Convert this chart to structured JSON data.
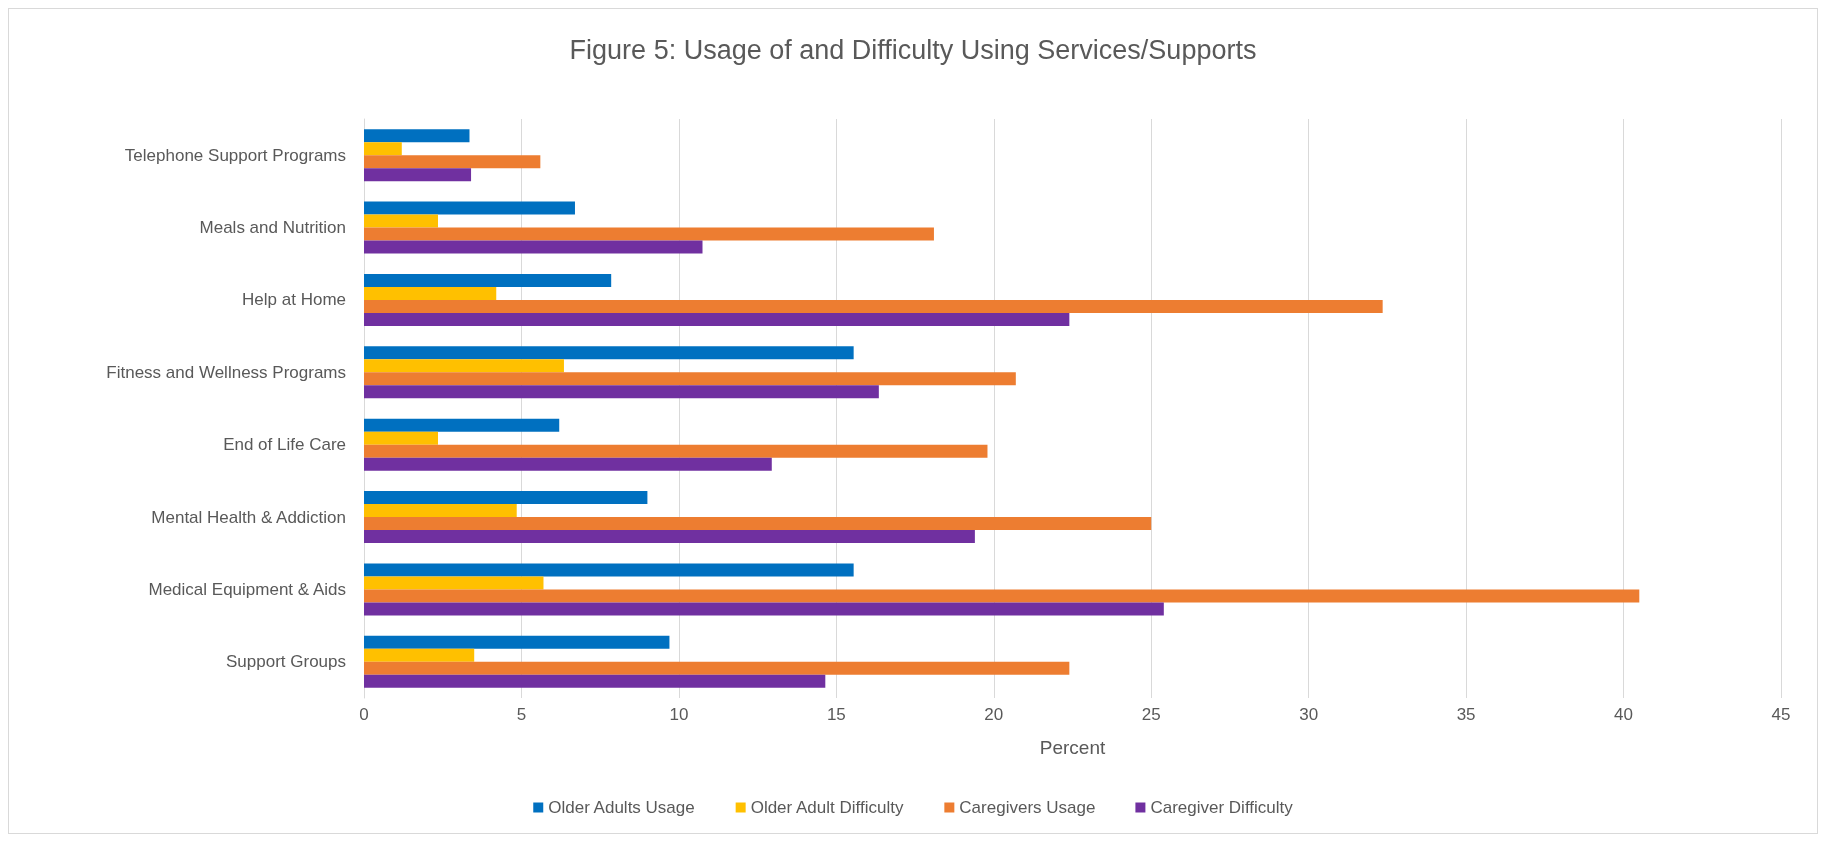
{
  "chart_data": {
    "type": "bar",
    "orientation": "horizontal",
    "title": "Figure 5: Usage of and Difficulty Using Services/Supports",
    "xlabel": "Percent",
    "categories": [
      "Telephone Support Programs",
      "Meals and Nutrition",
      "Help at Home",
      "Fitness and Wellness Programs",
      "End of Life Care",
      "Mental Health & Addiction",
      "Medical Equipment & Aids",
      "Support Groups"
    ],
    "series": [
      {
        "name": "Older Adults Usage",
        "color": "#0070c0",
        "values": [
          3.35,
          6.7,
          7.85,
          15.55,
          6.2,
          9.0,
          15.55,
          9.7
        ]
      },
      {
        "name": "Older Adult Difficulty",
        "color": "#ffc000",
        "values": [
          1.2,
          2.35,
          4.2,
          6.35,
          2.35,
          4.85,
          5.7,
          3.5
        ]
      },
      {
        "name": "Caregivers Usage",
        "color": "#ed7d31",
        "values": [
          5.6,
          18.1,
          32.35,
          20.7,
          19.8,
          25.0,
          40.5,
          22.4
        ]
      },
      {
        "name": "Caregiver Difficulty",
        "color": "#7030a0",
        "values": [
          3.4,
          10.75,
          22.4,
          16.35,
          12.95,
          19.4,
          25.4,
          14.65
        ]
      }
    ],
    "xlim": [
      0,
      45
    ],
    "xticks": [
      0,
      5,
      10,
      15,
      20,
      25,
      30,
      35,
      40,
      45
    ],
    "grid": "x",
    "legend": "bottom"
  }
}
